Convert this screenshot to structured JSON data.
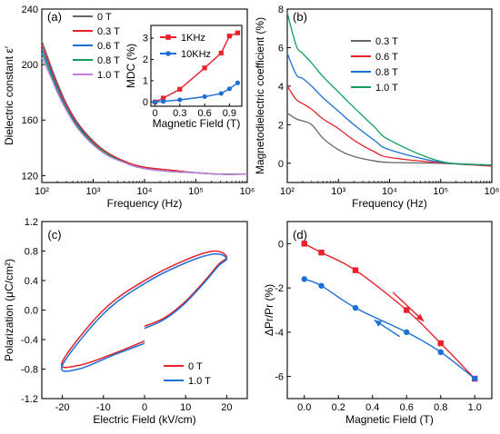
{
  "chart_data": [
    {
      "panel": "(a)",
      "type": "line",
      "xscale": "log",
      "xlim": [
        100,
        1000000
      ],
      "ylim": [
        115,
        240
      ],
      "xlabel": "Frequency (Hz)",
      "ylabel": "Dielectric constant ε′",
      "xticks": [
        100,
        1000,
        10000,
        100000,
        1000000
      ],
      "xtick_labels": [
        "10²",
        "10³",
        "10⁴",
        "10⁵",
        "10⁶"
      ],
      "yticks": [
        120,
        160,
        200,
        240
      ],
      "ytick_labels": [
        "120",
        "160",
        "200",
        "240"
      ],
      "legend_position": "top-left",
      "series": [
        {
          "name": "0 T",
          "color": "#666666",
          "x": [
            100,
            150,
            200,
            300,
            500,
            1000,
            2000,
            5000,
            10000,
            30000,
            100000,
            300000,
            1000000
          ],
          "y": [
            217,
            199,
            187,
            172,
            158,
            145,
            136,
            129,
            126,
            124,
            122,
            121,
            121
          ]
        },
        {
          "name": "0.3 T",
          "color": "#e8202a",
          "x": [
            100,
            150,
            200,
            300,
            500,
            1000,
            2000,
            5000,
            10000,
            30000,
            100000,
            300000,
            1000000
          ],
          "y": [
            214,
            197,
            185,
            171,
            157,
            144,
            136,
            129,
            126,
            124,
            122,
            121,
            121
          ]
        },
        {
          "name": "0.6 T",
          "color": "#1c6fd6",
          "x": [
            100,
            150,
            200,
            300,
            500,
            1000,
            2000,
            5000,
            10000,
            30000,
            100000,
            300000,
            1000000
          ],
          "y": [
            211,
            195,
            183,
            169,
            156,
            143,
            135,
            128,
            125,
            123,
            122,
            121,
            121
          ]
        },
        {
          "name": "0.8 T",
          "color": "#11a05a",
          "x": [
            100,
            150,
            200,
            300,
            500,
            1000,
            2000,
            5000,
            10000,
            30000,
            100000,
            300000,
            1000000
          ],
          "y": [
            208,
            193,
            181,
            168,
            155,
            143,
            135,
            128,
            125,
            123,
            122,
            121,
            121
          ]
        },
        {
          "name": "1.0 T",
          "color": "#c77ddf",
          "x": [
            100,
            150,
            200,
            300,
            500,
            1000,
            2000,
            5000,
            10000,
            30000,
            100000,
            300000,
            1000000
          ],
          "y": [
            205,
            191,
            180,
            167,
            154,
            142,
            134,
            128,
            125,
            123,
            122,
            121,
            121
          ]
        }
      ],
      "inset": {
        "type": "line",
        "xlabel": "Magnetic Field (T)",
        "ylabel": "MDC (%)",
        "xlim": [
          -0.05,
          1.05
        ],
        "ylim": [
          -0.2,
          3.6
        ],
        "xticks": [
          0,
          0.3,
          0.6,
          0.9
        ],
        "xtick_labels": [
          "0",
          "0.3",
          "0.6",
          "0.9"
        ],
        "yticks": [
          0,
          1,
          2,
          3
        ],
        "ytick_labels": [
          "0",
          "1",
          "2",
          "3"
        ],
        "legend_position": "top-left",
        "series": [
          {
            "name": "1KHz",
            "color": "#e8202a",
            "marker": "square",
            "x": [
              0,
              0.1,
              0.3,
              0.6,
              0.8,
              0.9,
              1.0
            ],
            "y": [
              0,
              0.18,
              0.6,
              1.6,
              2.3,
              3.1,
              3.25
            ]
          },
          {
            "name": "10KHz",
            "color": "#1c6fd6",
            "marker": "circle",
            "x": [
              0,
              0.1,
              0.3,
              0.6,
              0.8,
              0.9,
              1.0
            ],
            "y": [
              0,
              0.03,
              0.1,
              0.25,
              0.4,
              0.62,
              0.9
            ]
          }
        ]
      }
    },
    {
      "panel": "(b)",
      "type": "line",
      "xscale": "log",
      "xlim": [
        100,
        1000000
      ],
      "ylim": [
        -1,
        8
      ],
      "xlabel": "Frequency (Hz)",
      "ylabel": "Magnetodielectric coefficient (%)",
      "xticks": [
        100,
        1000,
        10000,
        100000,
        1000000
      ],
      "xtick_labels": [
        "10²",
        "10³",
        "10⁴",
        "10⁵",
        "10⁶"
      ],
      "yticks": [
        0,
        2,
        4,
        6,
        8
      ],
      "ytick_labels": [
        "0",
        "2",
        "4",
        "6",
        "8"
      ],
      "legend_position": "top-right",
      "series": [
        {
          "name": "0.3 T",
          "color": "#666666",
          "x": [
            100,
            150,
            200,
            300,
            500,
            1000,
            2000,
            5000,
            10000,
            100000,
            1000000
          ],
          "y": [
            2.6,
            2.3,
            2.2,
            2.0,
            1.3,
            0.7,
            0.35,
            0.12,
            0.04,
            0,
            -0.1
          ]
        },
        {
          "name": "0.6 T",
          "color": "#e8202a",
          "x": [
            100,
            150,
            200,
            300,
            500,
            1000,
            2000,
            5000,
            10000,
            100000,
            1000000
          ],
          "y": [
            4.0,
            3.3,
            3.1,
            2.8,
            2.3,
            1.8,
            1.2,
            0.6,
            0.3,
            0.02,
            -0.15
          ]
        },
        {
          "name": "0.8 T",
          "color": "#1c6fd6",
          "x": [
            100,
            150,
            200,
            300,
            500,
            1000,
            2000,
            5000,
            10000,
            100000,
            1000000
          ],
          "y": [
            5.7,
            4.6,
            4.4,
            4.0,
            3.4,
            2.7,
            2.0,
            1.2,
            0.7,
            0.05,
            -0.1
          ]
        },
        {
          "name": "1.0 T",
          "color": "#11a05a",
          "x": [
            100,
            150,
            200,
            300,
            500,
            1000,
            2000,
            5000,
            10000,
            100000,
            1000000
          ],
          "y": [
            7.8,
            6.1,
            5.7,
            5.2,
            4.5,
            3.7,
            2.9,
            1.9,
            1.2,
            0.1,
            -0.1
          ]
        }
      ]
    },
    {
      "panel": "(c)",
      "type": "line",
      "xlim": [
        -25,
        25
      ],
      "ylim": [
        -1.2,
        1.2
      ],
      "xlabel": "Electric Field (kV/cm)",
      "ylabel": "Polarization (μC/cm²)",
      "xticks": [
        -20,
        -10,
        0,
        10,
        20
      ],
      "xtick_labels": [
        "-20",
        "-10",
        "0",
        "10",
        "20"
      ],
      "yticks": [
        -1.2,
        -0.8,
        -0.4,
        0,
        0.4,
        0.8,
        1.2
      ],
      "ytick_labels": [
        "-1.2",
        "-0.8",
        "-0.4",
        "0.0",
        "0.4",
        "0.8",
        "1.2"
      ],
      "legend_position": "bottom-right",
      "series": [
        {
          "name": "0 T",
          "color": "#e8202a",
          "x": [
            0,
            5,
            10,
            15,
            18,
            20,
            17,
            10,
            0,
            -10,
            -20,
            -16,
            -8,
            0
          ],
          "y": [
            -0.22,
            -0.1,
            0.12,
            0.42,
            0.62,
            0.72,
            0.8,
            0.68,
            0.4,
            0.0,
            -0.7,
            -0.75,
            -0.6,
            -0.42
          ]
        },
        {
          "name": "1.0 T",
          "color": "#1c6fd6",
          "x": [
            0,
            5,
            10,
            15,
            18,
            20,
            17,
            10,
            0,
            -10,
            -20,
            -16,
            -8,
            0
          ],
          "y": [
            -0.25,
            -0.12,
            0.1,
            0.4,
            0.6,
            0.7,
            0.76,
            0.64,
            0.36,
            -0.05,
            -0.75,
            -0.8,
            -0.62,
            -0.45
          ]
        }
      ]
    },
    {
      "panel": "(d)",
      "type": "line",
      "xlim": [
        -0.1,
        1.1
      ],
      "ylim": [
        -7,
        1
      ],
      "xlabel": "Magnetic Field (T)",
      "ylabel": "ΔPr/Pr (%)",
      "xticks": [
        0,
        0.2,
        0.4,
        0.6,
        0.8,
        1.0
      ],
      "xtick_labels": [
        "0.0",
        "0.2",
        "0.4",
        "0.6",
        "0.8",
        "1.0"
      ],
      "yticks": [
        0,
        -2,
        -4,
        -6
      ],
      "ytick_labels": [
        "0",
        "-2",
        "-4",
        "-6"
      ],
      "series": [
        {
          "color": "#e8202a",
          "marker": "square",
          "x": [
            0,
            0.1,
            0.3,
            0.6,
            0.8,
            1.0
          ],
          "y": [
            0,
            -0.4,
            -1.2,
            -3.0,
            -4.5,
            -6.1
          ]
        },
        {
          "color": "#1c6fd6",
          "marker": "circle",
          "x": [
            0,
            0.1,
            0.3,
            0.6,
            0.8,
            1.0
          ],
          "y": [
            -1.6,
            -1.9,
            -2.9,
            -4.0,
            -4.9,
            -6.1
          ]
        }
      ],
      "annotations": [
        {
          "type": "arrow",
          "color": "#e8202a",
          "from": [
            0.52,
            -2.2
          ],
          "to": [
            0.7,
            -3.5
          ]
        },
        {
          "type": "arrow",
          "color": "#1c6fd6",
          "from": [
            0.56,
            -4.2
          ],
          "to": [
            0.41,
            -3.45
          ]
        }
      ]
    }
  ]
}
